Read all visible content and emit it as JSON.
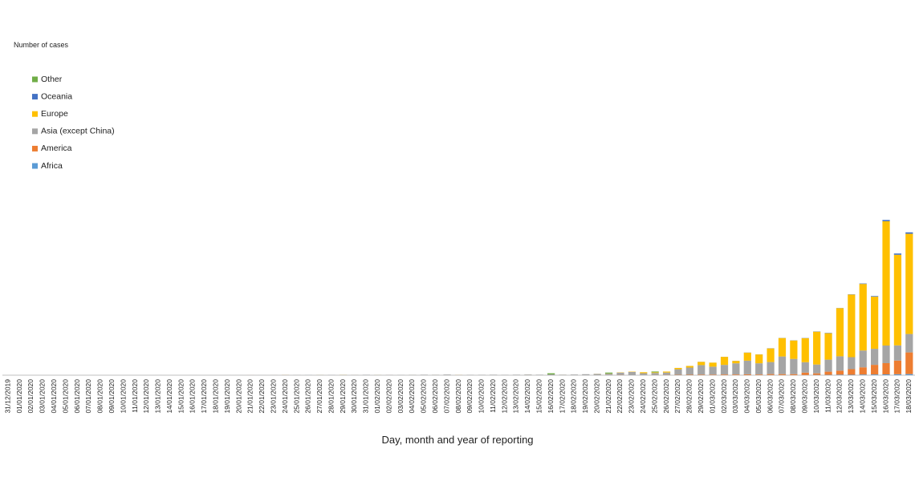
{
  "chart_data": {
    "type": "stacked_bar",
    "y_axis_label": "Number of cases",
    "x_axis_label": "Day, month and year of reporting",
    "ylim": [
      0,
      20000
    ],
    "categories": [
      "31/12/2019",
      "01/01/2020",
      "02/01/2020",
      "03/01/2020",
      "04/01/2020",
      "05/01/2020",
      "06/01/2020",
      "07/01/2020",
      "08/01/2020",
      "09/01/2020",
      "10/01/2020",
      "11/01/2020",
      "12/01/2020",
      "13/01/2020",
      "14/01/2020",
      "15/01/2020",
      "16/01/2020",
      "17/01/2020",
      "18/01/2020",
      "19/01/2020",
      "20/01/2020",
      "21/01/2020",
      "22/01/2020",
      "23/01/2020",
      "24/01/2020",
      "25/01/2020",
      "26/01/2020",
      "27/01/2020",
      "28/01/2020",
      "29/01/2020",
      "30/01/2020",
      "31/01/2020",
      "01/02/2020",
      "02/02/2020",
      "03/02/2020",
      "04/02/2020",
      "05/02/2020",
      "06/02/2020",
      "07/02/2020",
      "08/02/2020",
      "09/02/2020",
      "10/02/2020",
      "11/02/2020",
      "12/02/2020",
      "13/02/2020",
      "14/02/2020",
      "15/02/2020",
      "16/02/2020",
      "17/02/2020",
      "18/02/2020",
      "19/02/2020",
      "20/02/2020",
      "21/02/2020",
      "22/02/2020",
      "23/02/2020",
      "24/02/2020",
      "25/02/2020",
      "26/02/2020",
      "27/02/2020",
      "28/02/2020",
      "29/02/2020",
      "01/03/2020",
      "02/03/2020",
      "03/03/2020",
      "04/03/2020",
      "05/03/2020",
      "06/03/2020",
      "07/03/2020",
      "08/03/2020",
      "09/03/2020",
      "10/03/2020",
      "11/03/2020",
      "12/03/2020",
      "13/03/2020",
      "14/03/2020",
      "15/03/2020",
      "16/03/2020",
      "17/03/2020",
      "18/03/2020"
    ],
    "series": [
      {
        "name": "Africa",
        "color": "#5b9bd5",
        "values": [
          0,
          0,
          0,
          0,
          0,
          0,
          0,
          0,
          0,
          0,
          0,
          0,
          0,
          0,
          0,
          0,
          0,
          0,
          0,
          0,
          0,
          0,
          0,
          0,
          0,
          0,
          0,
          0,
          0,
          0,
          0,
          0,
          0,
          0,
          0,
          0,
          0,
          0,
          0,
          0,
          0,
          0,
          0,
          0,
          0,
          0,
          0,
          0,
          0,
          0,
          0,
          0,
          0,
          0,
          0,
          0,
          0,
          1,
          1,
          0,
          0,
          2,
          3,
          2,
          5,
          3,
          10,
          8,
          5,
          10,
          15,
          20,
          30,
          25,
          40,
          45,
          50,
          60,
          70
        ]
      },
      {
        "name": "America",
        "color": "#ed7d31",
        "values": [
          0,
          0,
          0,
          0,
          0,
          0,
          0,
          0,
          0,
          0,
          0,
          0,
          0,
          0,
          0,
          0,
          0,
          0,
          0,
          0,
          0,
          1,
          0,
          1,
          2,
          0,
          0,
          0,
          0,
          0,
          1,
          1,
          0,
          1,
          0,
          0,
          0,
          0,
          0,
          1,
          0,
          0,
          0,
          0,
          1,
          0,
          0,
          0,
          0,
          0,
          1,
          0,
          2,
          13,
          0,
          5,
          10,
          15,
          20,
          25,
          30,
          30,
          40,
          40,
          50,
          40,
          60,
          60,
          60,
          150,
          100,
          200,
          250,
          350,
          450,
          600,
          700,
          850,
          1350
        ]
      },
      {
        "name": "Asia (except China)",
        "color": "#a5a5a5",
        "values": [
          0,
          0,
          0,
          0,
          0,
          0,
          0,
          0,
          0,
          0,
          0,
          0,
          0,
          1,
          0,
          0,
          1,
          0,
          0,
          1,
          2,
          1,
          2,
          5,
          5,
          9,
          7,
          10,
          8,
          16,
          9,
          24,
          10,
          15,
          14,
          20,
          30,
          25,
          40,
          12,
          20,
          25,
          30,
          20,
          30,
          40,
          30,
          50,
          30,
          40,
          60,
          80,
          90,
          150,
          200,
          120,
          130,
          150,
          350,
          450,
          600,
          500,
          600,
          700,
          850,
          700,
          750,
          1100,
          950,
          650,
          550,
          750,
          900,
          750,
          1050,
          1000,
          1100,
          950,
          1150
        ]
      },
      {
        "name": "Europe",
        "color": "#ffc000",
        "values": [
          0,
          0,
          0,
          0,
          0,
          0,
          0,
          0,
          0,
          0,
          0,
          0,
          0,
          0,
          0,
          0,
          0,
          0,
          0,
          0,
          0,
          0,
          0,
          0,
          3,
          0,
          0,
          2,
          0,
          5,
          1,
          0,
          2,
          0,
          0,
          1,
          0,
          1,
          0,
          3,
          0,
          0,
          0,
          0,
          0,
          1,
          0,
          0,
          1,
          0,
          0,
          5,
          10,
          15,
          20,
          60,
          40,
          60,
          80,
          100,
          200,
          250,
          500,
          150,
          500,
          550,
          850,
          1150,
          1150,
          1500,
          2050,
          1650,
          3000,
          3900,
          4150,
          3250,
          7750,
          5650,
          6250
        ]
      },
      {
        "name": "Oceania",
        "color": "#4472c4",
        "values": [
          0,
          0,
          0,
          0,
          0,
          0,
          0,
          0,
          0,
          0,
          0,
          0,
          0,
          0,
          0,
          0,
          0,
          0,
          0,
          0,
          0,
          0,
          0,
          0,
          1,
          0,
          1,
          0,
          1,
          1,
          1,
          1,
          0,
          0,
          0,
          0,
          0,
          0,
          0,
          0,
          0,
          0,
          0,
          0,
          0,
          0,
          0,
          0,
          0,
          0,
          0,
          0,
          0,
          0,
          0,
          0,
          0,
          1,
          2,
          3,
          5,
          2,
          4,
          5,
          8,
          5,
          10,
          8,
          10,
          12,
          15,
          20,
          10,
          15,
          30,
          40,
          80,
          80,
          90
        ]
      },
      {
        "name": "Other",
        "color": "#70ad47",
        "values": [
          0,
          0,
          0,
          0,
          0,
          0,
          0,
          0,
          0,
          0,
          0,
          0,
          0,
          0,
          0,
          0,
          0,
          0,
          0,
          0,
          0,
          0,
          0,
          0,
          0,
          0,
          0,
          0,
          0,
          0,
          0,
          0,
          0,
          0,
          0,
          0,
          0,
          0,
          0,
          0,
          0,
          0,
          0,
          0,
          0,
          0,
          0,
          70,
          0,
          0,
          0,
          0,
          60,
          0,
          0,
          0,
          50,
          0,
          0,
          0,
          0,
          0,
          0,
          0,
          0,
          0,
          0,
          0,
          0,
          0,
          0,
          0,
          0,
          0,
          0,
          0,
          0,
          0,
          0
        ]
      }
    ]
  }
}
